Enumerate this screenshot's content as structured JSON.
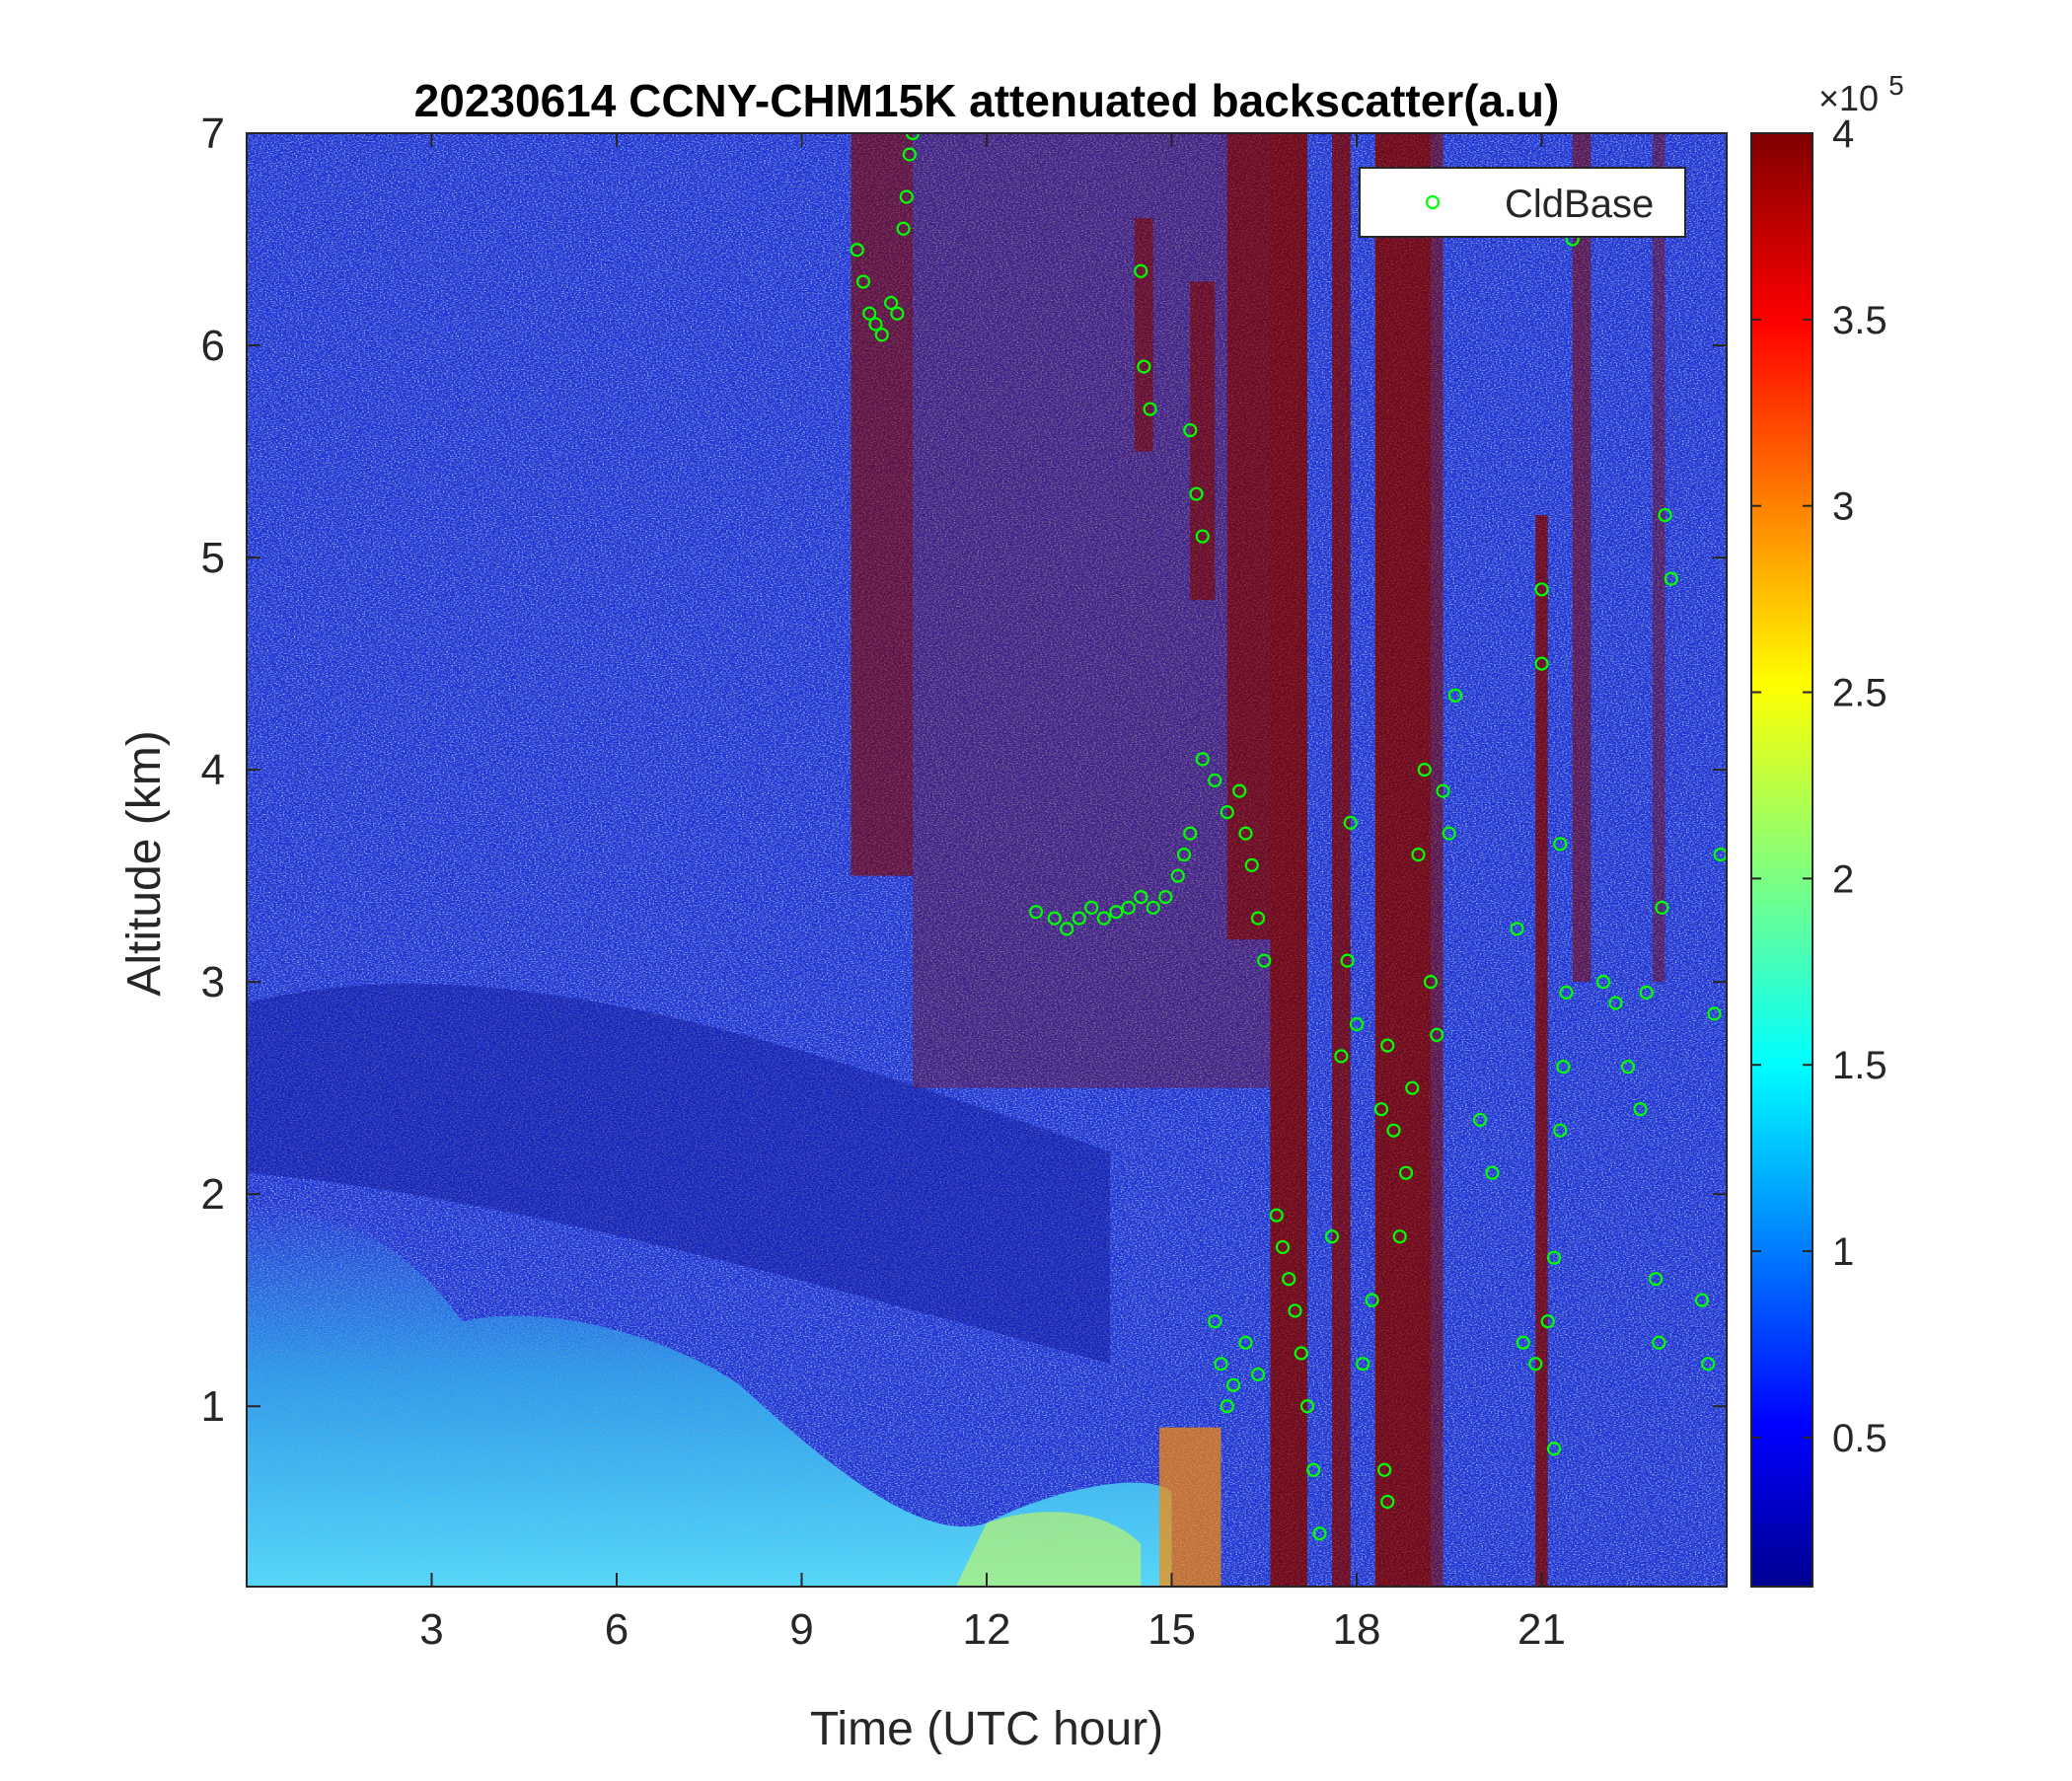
{
  "chart_data": {
    "type": "heatmap",
    "title": "20230614 CCNY-CHM15K attenuated backscatter(a.u)",
    "xlabel": "Time (UTC hour)",
    "ylabel": "Altitude (km)",
    "xlim": [
      0,
      24
    ],
    "ylim": [
      0.15,
      7
    ],
    "xticks": [
      3,
      6,
      9,
      12,
      15,
      18,
      21
    ],
    "yticks": [
      1,
      2,
      3,
      4,
      5,
      6,
      7
    ],
    "colorbar": {
      "colormap": "jet",
      "range": [
        0.1,
        4
      ],
      "ticks": [
        0.5,
        1,
        1.5,
        2,
        2.5,
        3,
        3.5,
        4
      ],
      "exponent_label": "×10",
      "exponent": "5"
    },
    "legend": {
      "position": "top-right",
      "entries": [
        {
          "name": "CldBase",
          "marker": "circle",
          "color": "#00ff00"
        }
      ]
    },
    "series": [
      {
        "name": "CldBase",
        "points": [
          [
            9.9,
            6.45
          ],
          [
            10.0,
            6.3
          ],
          [
            10.1,
            6.15
          ],
          [
            10.2,
            6.1
          ],
          [
            10.3,
            6.05
          ],
          [
            10.45,
            6.2
          ],
          [
            10.55,
            6.15
          ],
          [
            10.65,
            6.55
          ],
          [
            10.7,
            6.7
          ],
          [
            10.75,
            6.9
          ],
          [
            10.8,
            7.0
          ],
          [
            12.8,
            3.33
          ],
          [
            13.1,
            3.3
          ],
          [
            13.3,
            3.25
          ],
          [
            13.5,
            3.3
          ],
          [
            13.7,
            3.35
          ],
          [
            13.9,
            3.3
          ],
          [
            14.1,
            3.33
          ],
          [
            14.3,
            3.35
          ],
          [
            14.5,
            3.4
          ],
          [
            14.7,
            3.35
          ],
          [
            14.9,
            3.4
          ],
          [
            15.1,
            3.5
          ],
          [
            15.2,
            3.6
          ],
          [
            15.3,
            3.7
          ],
          [
            14.5,
            6.35
          ],
          [
            14.55,
            5.9
          ],
          [
            14.65,
            5.7
          ],
          [
            15.3,
            5.6
          ],
          [
            15.4,
            5.3
          ],
          [
            15.5,
            5.1
          ],
          [
            15.5,
            4.05
          ],
          [
            15.7,
            3.95
          ],
          [
            15.9,
            3.8
          ],
          [
            16.1,
            3.9
          ],
          [
            16.2,
            3.7
          ],
          [
            16.3,
            3.55
          ],
          [
            16.4,
            3.3
          ],
          [
            16.5,
            3.1
          ],
          [
            15.7,
            1.4
          ],
          [
            15.8,
            1.2
          ],
          [
            15.9,
            1.0
          ],
          [
            16.0,
            1.1
          ],
          [
            16.2,
            1.3
          ],
          [
            16.4,
            1.15
          ],
          [
            16.7,
            1.9
          ],
          [
            16.8,
            1.75
          ],
          [
            16.9,
            1.6
          ],
          [
            17.0,
            1.45
          ],
          [
            17.1,
            1.25
          ],
          [
            17.2,
            1.0
          ],
          [
            17.3,
            0.7
          ],
          [
            17.4,
            0.4
          ],
          [
            17.6,
            1.8
          ],
          [
            17.75,
            2.65
          ],
          [
            17.85,
            3.1
          ],
          [
            17.9,
            3.75
          ],
          [
            18.0,
            2.8
          ],
          [
            18.1,
            1.2
          ],
          [
            18.25,
            1.5
          ],
          [
            18.4,
            2.4
          ],
          [
            18.5,
            2.7
          ],
          [
            18.6,
            2.3
          ],
          [
            18.7,
            1.8
          ],
          [
            18.8,
            2.1
          ],
          [
            18.9,
            2.5
          ],
          [
            19.0,
            3.6
          ],
          [
            19.1,
            4.0
          ],
          [
            19.2,
            3.0
          ],
          [
            19.3,
            2.75
          ],
          [
            19.4,
            3.9
          ],
          [
            19.5,
            3.7
          ],
          [
            19.6,
            4.35
          ],
          [
            18.45,
            0.7
          ],
          [
            18.5,
            0.55
          ],
          [
            20.0,
            2.35
          ],
          [
            20.2,
            2.1
          ],
          [
            20.6,
            3.25
          ],
          [
            20.7,
            1.3
          ],
          [
            20.9,
            1.2
          ],
          [
            21.0,
            4.5
          ],
          [
            21.1,
            1.4
          ],
          [
            21.2,
            1.7
          ],
          [
            21.3,
            2.3
          ],
          [
            21.35,
            2.6
          ],
          [
            21.4,
            2.95
          ],
          [
            21.2,
            0.8
          ],
          [
            21.0,
            4.85
          ],
          [
            21.3,
            3.65
          ],
          [
            21.5,
            6.5
          ],
          [
            22.0,
            3.0
          ],
          [
            22.2,
            2.9
          ],
          [
            22.4,
            2.6
          ],
          [
            22.6,
            2.4
          ],
          [
            22.7,
            2.95
          ],
          [
            22.85,
            1.6
          ],
          [
            22.9,
            1.3
          ],
          [
            23.0,
            5.2
          ],
          [
            23.1,
            4.9
          ],
          [
            22.95,
            3.35
          ],
          [
            23.6,
            1.5
          ],
          [
            23.7,
            1.2
          ],
          [
            23.8,
            2.85
          ],
          [
            23.9,
            3.6
          ]
        ]
      }
    ]
  }
}
